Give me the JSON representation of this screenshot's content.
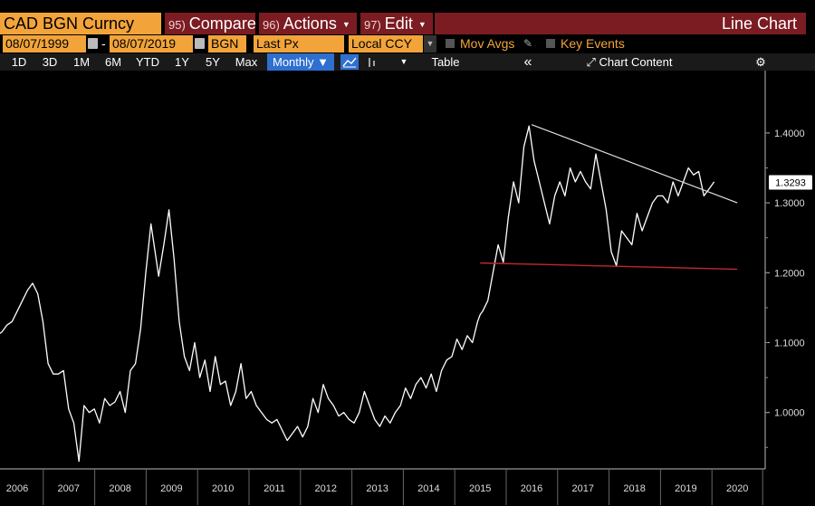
{
  "header": {
    "security": "CAD BGN Curncy",
    "compare": {
      "num": "95)",
      "label": "Compare"
    },
    "actions": {
      "num": "96)",
      "label": "Actions"
    },
    "edit": {
      "num": "97)",
      "label": "Edit"
    },
    "chart_title": "Line Chart"
  },
  "params": {
    "start_date": "08/07/1999",
    "end_date": "08/07/2019",
    "source": "BGN",
    "field": "Last Px",
    "currency": "Local CCY",
    "mov_avgs": "Mov Avgs",
    "key_events": "Key Events"
  },
  "toolbar": {
    "ranges": [
      "1D",
      "3D",
      "1M",
      "6M",
      "YTD",
      "1Y",
      "5Y",
      "Max"
    ],
    "period": "Monthly",
    "table": "Table",
    "collapse": "«",
    "chart_content": "Chart Content"
  },
  "colors": {
    "accent": "#f2a43a",
    "menu_red": "#7a1c22",
    "blue": "#2f6fd0",
    "line": "#ffffff",
    "support": "#c0282a"
  },
  "chart_data": {
    "type": "line",
    "ylim": [
      0.93,
      1.47
    ],
    "ytick_labels": [
      "1.0000",
      "1.1000",
      "1.2000",
      "1.3000",
      "1.4000"
    ],
    "yticks": [
      1.0,
      1.1,
      1.2,
      1.3,
      1.4
    ],
    "xtick_labels": [
      "2006",
      "2007",
      "2008",
      "2009",
      "2010",
      "2011",
      "2012",
      "2013",
      "2014",
      "2015",
      "2016",
      "2017",
      "2018",
      "2019",
      "2020"
    ],
    "last_value": "1.3293",
    "series": [
      {
        "x": [
          2005.35,
          2005.4,
          2005.5,
          2005.6,
          2005.7,
          2005.8,
          2005.9,
          2006.0,
          2006.1,
          2006.2,
          2006.3,
          2006.4,
          2006.5,
          2006.6,
          2006.7,
          2006.8,
          2006.9,
          2007.0,
          2007.1,
          2007.2,
          2007.3,
          2007.4,
          2007.5,
          2007.6,
          2007.7,
          2007.8,
          2007.9,
          2008.0,
          2008.1,
          2008.2,
          2008.3,
          2008.4,
          2008.5,
          2008.6,
          2008.7,
          2008.75,
          2008.85,
          2008.95,
          2009.05,
          2009.15,
          2009.25,
          2009.35,
          2009.45,
          2009.55,
          2009.65,
          2009.75,
          2009.85,
          2009.95,
          2010.05,
          2010.15,
          2010.25,
          2010.35,
          2010.45,
          2010.55,
          2010.65,
          2010.75,
          2010.85,
          2010.95,
          2011.05,
          2011.15,
          2011.25,
          2011.35,
          2011.45,
          2011.55,
          2011.65,
          2011.75,
          2011.85,
          2011.95,
          2012.05,
          2012.15,
          2012.25,
          2012.35,
          2012.45,
          2012.55,
          2012.65,
          2012.75,
          2012.85,
          2012.95,
          2013.05,
          2013.15,
          2013.25,
          2013.35,
          2013.45,
          2013.55,
          2013.65,
          2013.75,
          2013.85,
          2013.95,
          2014.05,
          2014.15,
          2014.25,
          2014.35,
          2014.45,
          2014.55,
          2014.65,
          2014.75,
          2014.85,
          2014.95,
          2015.0,
          2015.05,
          2015.15,
          2015.25,
          2015.35,
          2015.45,
          2015.55,
          2015.65,
          2015.75,
          2015.85,
          2015.95,
          2016.05,
          2016.15,
          2016.25,
          2016.35,
          2016.45,
          2016.55,
          2016.65,
          2016.75,
          2016.85,
          2016.95,
          2017.05,
          2017.15,
          2017.25,
          2017.35,
          2017.45,
          2017.55,
          2017.65,
          2017.75,
          2017.85,
          2017.95,
          2018.05,
          2018.15,
          2018.25,
          2018.35,
          2018.45,
          2018.55,
          2018.65,
          2018.75,
          2018.85,
          2018.95,
          2019.05,
          2019.15,
          2019.25,
          2019.35,
          2019.45,
          2019.55
        ],
        "y": [
          1.14,
          1.105,
          1.112,
          1.11,
          1.115,
          1.125,
          1.13,
          1.145,
          1.16,
          1.175,
          1.185,
          1.17,
          1.13,
          1.07,
          1.055,
          1.055,
          1.06,
          1.005,
          0.985,
          0.93,
          1.01,
          1.0,
          1.005,
          0.985,
          1.02,
          1.01,
          1.015,
          1.03,
          1.0,
          1.06,
          1.07,
          1.12,
          1.2,
          1.27,
          1.22,
          1.195,
          1.24,
          1.29,
          1.22,
          1.13,
          1.08,
          1.06,
          1.1,
          1.05,
          1.075,
          1.03,
          1.08,
          1.04,
          1.045,
          1.01,
          1.03,
          1.07,
          1.02,
          1.03,
          1.01,
          1.0,
          0.99,
          0.985,
          0.99,
          0.975,
          0.96,
          0.97,
          0.98,
          0.965,
          0.98,
          1.02,
          1.0,
          1.04,
          1.02,
          1.01,
          0.995,
          1.0,
          0.99,
          0.985,
          1.0,
          1.03,
          1.01,
          0.99,
          0.98,
          0.995,
          0.985,
          1.0,
          1.01,
          1.035,
          1.02,
          1.04,
          1.05,
          1.035,
          1.055,
          1.03,
          1.06,
          1.075,
          1.08,
          1.105,
          1.09,
          1.11,
          1.1,
          1.13,
          1.14,
          1.145,
          1.16,
          1.2,
          1.24,
          1.215,
          1.28,
          1.33,
          1.3,
          1.38,
          1.41,
          1.36,
          1.33,
          1.3,
          1.27,
          1.31,
          1.33,
          1.31,
          1.35,
          1.33,
          1.345,
          1.33,
          1.32,
          1.37,
          1.33,
          1.29,
          1.23,
          1.21,
          1.26,
          1.25,
          1.24,
          1.285,
          1.26,
          1.28,
          1.3,
          1.31,
          1.31,
          1.3,
          1.33,
          1.31,
          1.33,
          1.35,
          1.34,
          1.345,
          1.31,
          1.32,
          1.33
        ]
      }
    ],
    "annotations": [
      {
        "type": "trendline",
        "from": [
          2016.0,
          1.412
        ],
        "to": [
          2020.0,
          1.3
        ],
        "color": "#e0e0e0"
      },
      {
        "type": "trendline",
        "from": [
          2015.0,
          1.214
        ],
        "to": [
          2020.0,
          1.205
        ],
        "color": "#c0282a"
      }
    ]
  }
}
